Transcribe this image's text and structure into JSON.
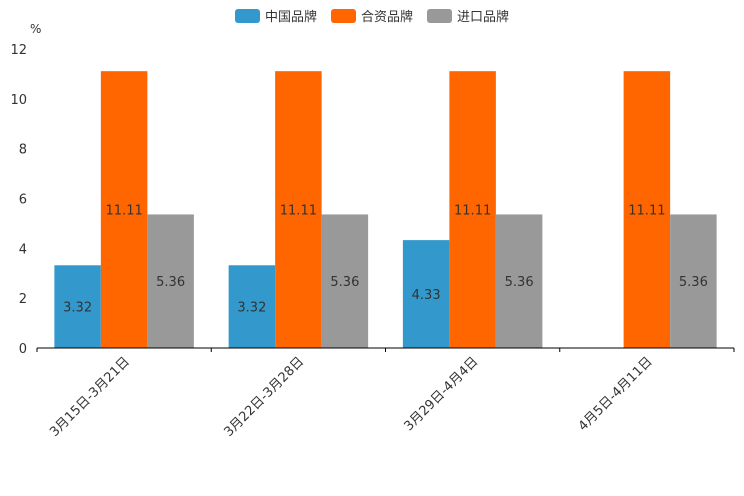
{
  "chart_data": {
    "type": "bar",
    "title": "",
    "ylabel": "%",
    "xlabel": "",
    "ylim": [
      0,
      12
    ],
    "yticks": [
      0,
      2,
      4,
      6,
      8,
      10,
      12
    ],
    "categories": [
      "3月15日-3月21日",
      "3月22日-3月28日",
      "3月29日-4月4日",
      "4月5日-4月11日"
    ],
    "series": [
      {
        "name": "中国品牌",
        "color": "#3399CC",
        "values": [
          3.32,
          3.32,
          4.33,
          null
        ],
        "labels": [
          "3.32",
          "3.32",
          "4.33",
          ""
        ]
      },
      {
        "name": "合资品牌",
        "color": "#FF6600",
        "values": [
          11.11,
          11.11,
          11.11,
          11.11
        ],
        "labels": [
          "11.11",
          "11.11",
          "11.11",
          "11.11"
        ]
      },
      {
        "name": "进口品牌",
        "color": "#999999",
        "values": [
          5.36,
          5.36,
          5.36,
          5.36
        ],
        "labels": [
          "5.36",
          "5.36",
          "5.36",
          "5.36"
        ]
      }
    ],
    "legend_position": "top-center",
    "grid": false
  }
}
